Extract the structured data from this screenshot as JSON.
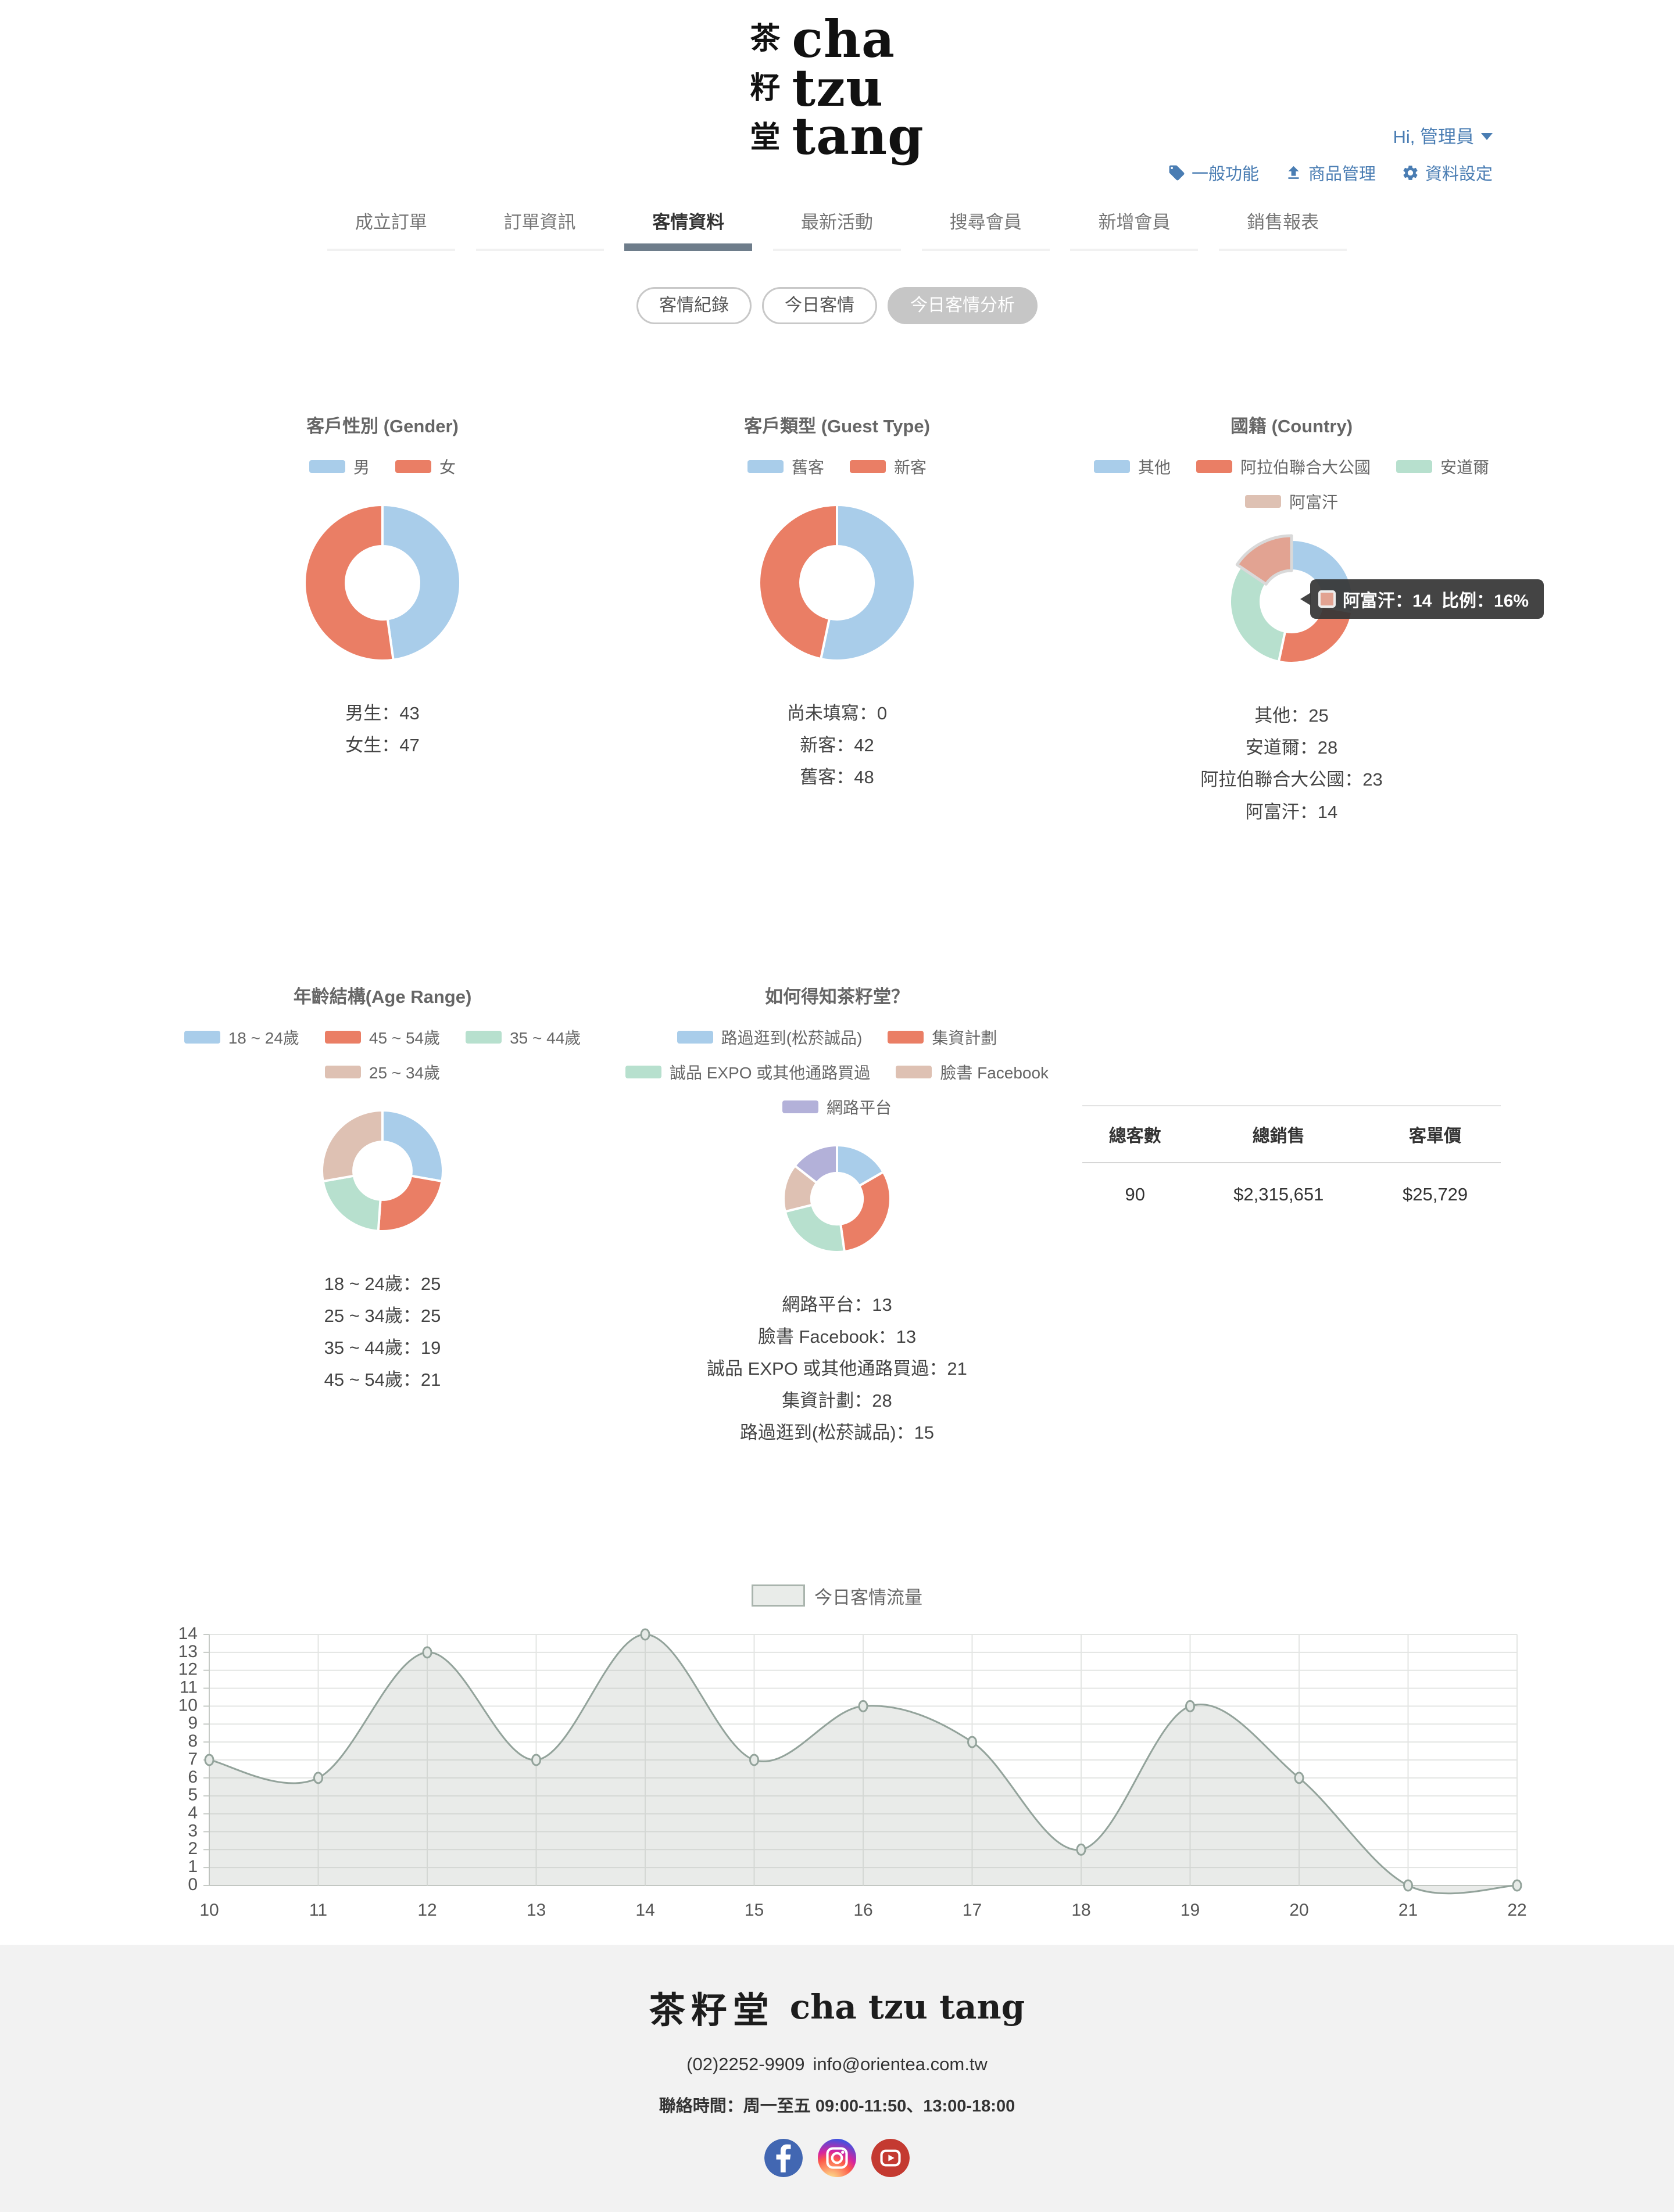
{
  "brand": {
    "logo_zh_chars": [
      "茶",
      "籽",
      "堂"
    ],
    "logo_en_lines": [
      "cha",
      "tzu",
      "tang"
    ],
    "footer_logo_zh": "茶籽堂",
    "footer_logo_en": "cha tzu tang"
  },
  "header": {
    "user_menu": "Hi, 管理員",
    "nav": [
      {
        "icon": "tag-icon",
        "label": "一般功能"
      },
      {
        "icon": "upload-icon",
        "label": "商品管理"
      },
      {
        "icon": "gear-icon",
        "label": "資料設定"
      }
    ]
  },
  "tabs": {
    "active_index": 2,
    "items": [
      "成立訂單",
      "訂單資訊",
      "客情資料",
      "最新活動",
      "搜尋會員",
      "新增會員",
      "銷售報表"
    ]
  },
  "subtabs": {
    "active_index": 2,
    "items": [
      "客情紀錄",
      "今日客情",
      "今日客情分析"
    ]
  },
  "palette": {
    "blue": "#a9cdea",
    "red": "#ea7e65",
    "mint": "#b7e0ce",
    "pink": "#dec1b3",
    "purple": "#b3b1d9",
    "highlight_pink": "#e2a392",
    "link_blue": "#4a7db3",
    "active_tab_bar": "#6e7d8b",
    "area_line": "#93a39b",
    "area_fill": "rgba(166,176,168,0.25)"
  },
  "chart_data": [
    {
      "id": "gender",
      "type": "pie",
      "title": "客戶性別 (Gender)",
      "slices": [
        {
          "label": "男",
          "value": 43,
          "color": "#a9cdea"
        },
        {
          "label": "女",
          "value": 47,
          "color": "#ea7e65"
        }
      ],
      "summary": [
        "男生：43",
        "女生：47"
      ]
    },
    {
      "id": "guest_type",
      "type": "pie",
      "title": "客戶類型 (Guest Type)",
      "slices": [
        {
          "label": "舊客",
          "value": 48,
          "color": "#a9cdea"
        },
        {
          "label": "新客",
          "value": 42,
          "color": "#ea7e65"
        }
      ],
      "summary": [
        "尚未填寫：0",
        "新客：42",
        "舊客：48"
      ]
    },
    {
      "id": "country",
      "type": "pie",
      "title": "國籍 (Country)",
      "slices": [
        {
          "label": "其他",
          "value": 25,
          "color": "#a9cdea"
        },
        {
          "label": "阿拉伯聯合大公國",
          "value": 23,
          "color": "#ea7e65"
        },
        {
          "label": "安道爾",
          "value": 28,
          "color": "#b7e0ce"
        },
        {
          "label": "阿富汗",
          "value": 14,
          "color": "#dec1b3"
        }
      ],
      "highlight_index": 3,
      "highlight_color": "#e2a392",
      "summary": [
        "其他：25",
        "安道爾：28",
        "阿拉伯聯合大公國：23",
        "阿富汗：14"
      ]
    },
    {
      "id": "age_range",
      "type": "pie",
      "title": "年齡結構(Age Range)",
      "slices": [
        {
          "label": "18 ~ 24歲",
          "value": 25,
          "color": "#a9cdea"
        },
        {
          "label": "45 ~ 54歲",
          "value": 21,
          "color": "#ea7e65"
        },
        {
          "label": "35 ~ 44歲",
          "value": 19,
          "color": "#b7e0ce"
        },
        {
          "label": "25 ~ 34歲",
          "value": 25,
          "color": "#dec1b3"
        }
      ],
      "summary": [
        "18 ~ 24歲：25",
        "25 ~ 34歲：25",
        "35 ~ 44歲：19",
        "45 ~ 54歲：21"
      ]
    },
    {
      "id": "how_know",
      "type": "pie",
      "title": "如何得知茶籽堂？",
      "slices": [
        {
          "label": "路過逛到(松菸誠品)",
          "value": 15,
          "color": "#a9cdea"
        },
        {
          "label": "集資計劃",
          "value": 28,
          "color": "#ea7e65"
        },
        {
          "label": "誠品 EXPO 或其他通路買過",
          "value": 21,
          "color": "#b7e0ce"
        },
        {
          "label": "臉書 Facebook",
          "value": 13,
          "color": "#dec1b3"
        },
        {
          "label": "網路平台",
          "value": 13,
          "color": "#b3b1d9"
        }
      ],
      "summary": [
        "網路平台：13",
        "臉書 Facebook：13",
        "誠品 EXPO 或其他通路買過：21",
        "集資計劃：28",
        "路過逛到(松菸誠品)：15"
      ]
    },
    {
      "id": "traffic",
      "type": "area",
      "x": [
        10,
        11,
        12,
        13,
        14,
        15,
        16,
        17,
        18,
        19,
        20,
        21,
        22
      ],
      "series": [
        {
          "name": "今日客情流量",
          "values": [
            7,
            6,
            13,
            7,
            14,
            7,
            10,
            8,
            2,
            10,
            6,
            0,
            0
          ]
        }
      ],
      "ylim": [
        0,
        14
      ],
      "y_tick_step": 1,
      "grid": true,
      "legend_position": "top"
    }
  ],
  "country_tooltip": {
    "series": "阿富汗",
    "value_text": "阿富汗：14",
    "ratio_text": "比例：16%"
  },
  "stats_table": {
    "headers": [
      "總客數",
      "總銷售",
      "客單價"
    ],
    "rows": [
      [
        "90",
        "$2,315,651",
        "$25,729"
      ]
    ]
  },
  "footer": {
    "phone": "(02)2252-9909",
    "email": "info@orientea.com.tw",
    "hours": "聯絡時間：周一至五 09:00-11:50、13:00-18:00",
    "social": [
      "facebook",
      "instagram",
      "youtube"
    ]
  }
}
